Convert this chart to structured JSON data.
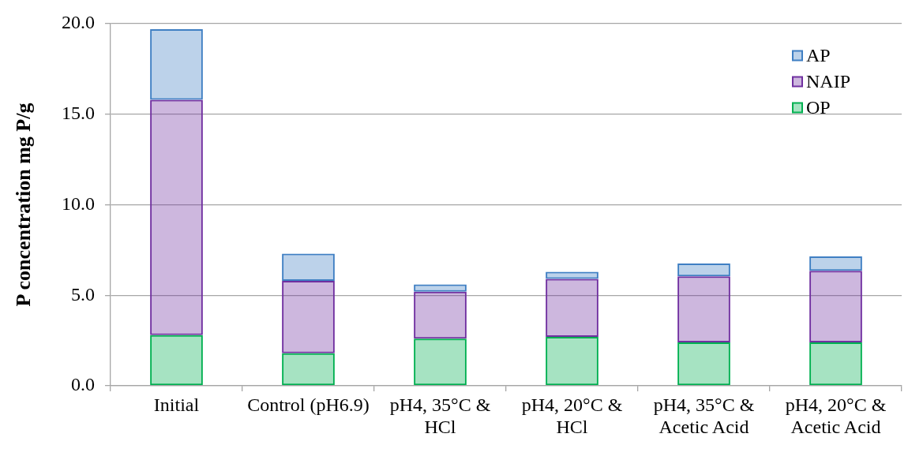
{
  "chart_data": {
    "type": "bar",
    "stacked": true,
    "ylabel": "P concentration mg P/g",
    "categories": [
      "Initial",
      "Control (pH6.9)",
      "pH4, 35°C & HCl",
      "pH4, 20°C & HCl",
      "pH4, 35°C & Acetic Acid",
      "pH4, 20°C & Acetic Acid"
    ],
    "series": [
      {
        "name": "OP",
        "color": "#00b050",
        "values": [
          2.8,
          1.8,
          2.6,
          2.7,
          2.4,
          2.4
        ]
      },
      {
        "name": "NAIP",
        "color": "#7030a0",
        "values": [
          13.0,
          4.0,
          2.6,
          3.2,
          3.65,
          3.95
        ]
      },
      {
        "name": "AP",
        "color": "#3f7fc3",
        "values": [
          3.9,
          1.5,
          0.4,
          0.4,
          0.7,
          0.8
        ]
      }
    ],
    "ylim": [
      0,
      20
    ],
    "yticks": [
      {
        "value": 0,
        "label": "0.0"
      },
      {
        "value": 5,
        "label": "5.0"
      },
      {
        "value": 10,
        "label": "10.0"
      },
      {
        "value": 15,
        "label": "15.0"
      },
      {
        "value": 20,
        "label": "20.0"
      }
    ],
    "grid": "y",
    "legend": "top right"
  }
}
